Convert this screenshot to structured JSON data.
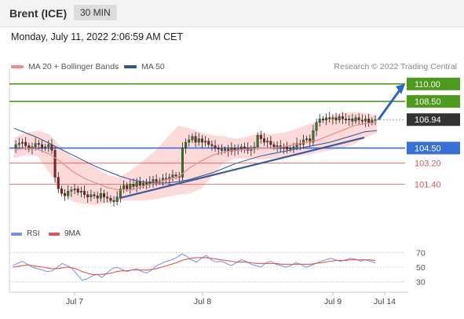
{
  "header": {
    "instrument": "Brent (ICE)",
    "interval": "30 MIN"
  },
  "datetime": "Monday, July 11, 2022 2:06:59 AM CET",
  "legend": {
    "ma20_label": "MA 20 + Bollinger Bands",
    "ma50_label": "MA 50",
    "credit": "Research © 2022 Trading Central"
  },
  "indicator_legend": {
    "rsi_label": "RSI",
    "ma9_label": "9MA"
  },
  "colors": {
    "ma20": "#ee8b8b",
    "ma50": "#33558e",
    "bollinger_fill": "#fbd4d4",
    "resistance": "#4d9a1c",
    "pivot": "#3a6fd6",
    "support": "#e05454",
    "current_price": "#333333",
    "candle_up": "#2f7d1f",
    "candle_down": "#8b1e1e",
    "trendline": "#3c5a9a",
    "rsi": "#7a8fe0",
    "ma9": "#e05454"
  },
  "chart_data": {
    "type": "candlestick",
    "title": "Brent (ICE)",
    "ylim": [
      99.0,
      111.0
    ],
    "x_labels": [
      "Jul 7",
      "Jul 8",
      "Jul 9",
      "Jul 14"
    ],
    "levels": [
      {
        "value": 110.0,
        "label": "110.00",
        "kind": "resistance"
      },
      {
        "value": 108.5,
        "label": "108.50",
        "kind": "resistance"
      },
      {
        "value": 106.94,
        "label": "106.94",
        "kind": "current"
      },
      {
        "value": 104.5,
        "label": "104.50",
        "kind": "pivot"
      },
      {
        "value": 103.2,
        "label": "103.20",
        "kind": "support"
      },
      {
        "value": 101.4,
        "label": "101.40",
        "kind": "support"
      }
    ],
    "price_path": [
      104.5,
      104.8,
      104.9,
      105.0,
      104.7,
      104.4,
      104.6,
      104.9,
      104.8,
      104.5,
      104.6,
      104.8,
      104.3,
      102.0,
      101.0,
      100.6,
      100.4,
      100.8,
      100.9,
      101.0,
      100.7,
      100.8,
      100.5,
      100.3,
      100.5,
      100.4,
      100.2,
      100.6,
      100.3,
      100.2,
      100.0,
      99.9,
      100.3,
      101.0,
      101.3,
      101.0,
      101.4,
      101.2,
      101.6,
      101.3,
      101.5,
      101.4,
      101.6,
      101.8,
      101.6,
      101.7,
      101.9,
      101.8,
      102.0,
      102.2,
      102.1,
      102.0,
      104.5,
      105.0,
      105.2,
      105.5,
      105.0,
      105.3,
      105.0,
      105.1,
      104.8,
      104.7,
      104.5,
      104.4,
      104.3,
      104.4,
      104.2,
      104.5,
      104.3,
      104.4,
      104.6,
      104.5,
      104.3,
      104.4,
      104.6,
      105.6,
      105.3,
      105.0,
      105.1,
      104.8,
      104.6,
      104.7,
      104.5,
      104.6,
      104.4,
      104.5,
      104.6,
      104.9,
      104.8,
      105.2,
      105.3,
      105.0,
      106.0,
      106.7,
      107.0,
      106.9,
      107.1,
      107.0,
      107.1,
      106.9,
      107.2,
      107.0,
      106.9,
      107.0,
      106.8,
      107.1,
      106.9,
      106.8,
      107.0,
      106.7,
      106.9,
      106.94
    ],
    "ma20": [
      104.3,
      104.5,
      104.4,
      104.0,
      103.3,
      102.5,
      101.9,
      101.5,
      101.1,
      100.9,
      100.9,
      101.2,
      101.5,
      101.8,
      102.0,
      102.8,
      103.4,
      103.9,
      104.2,
      104.3,
      104.4,
      104.5,
      104.5,
      104.6,
      104.8,
      105.0,
      105.2,
      105.6,
      106.0,
      106.4,
      106.6,
      106.7
    ],
    "ma50": [
      106.2,
      105.8,
      105.4,
      104.9,
      104.4,
      103.9,
      103.4,
      102.9,
      102.5,
      102.1,
      101.8,
      101.6,
      101.5,
      101.5,
      101.6,
      101.8,
      102.1,
      102.4,
      102.8,
      103.2,
      103.5,
      103.8,
      104.0,
      104.2,
      104.4,
      104.6,
      104.8,
      105.0,
      105.3,
      105.6,
      105.9,
      106.0
    ],
    "bollinger_upper": [
      105.4,
      105.8,
      106.0,
      105.7,
      104.6,
      103.7,
      103.4,
      102.8,
      102.2,
      102.0,
      102.6,
      103.4,
      104.2,
      105.3,
      106.4,
      106.2,
      105.8,
      105.6,
      105.5,
      105.3,
      105.5,
      105.8,
      105.7,
      105.8,
      106.1,
      106.5,
      106.8,
      107.2,
      107.5,
      107.6,
      107.5,
      107.3
    ],
    "bollinger_lower": [
      103.6,
      103.9,
      103.8,
      102.4,
      100.8,
      99.9,
      99.7,
      99.6,
      99.8,
      100.0,
      100.0,
      100.0,
      100.1,
      100.3,
      100.5,
      100.6,
      101.0,
      102.2,
      103.3,
      103.6,
      103.6,
      103.5,
      103.6,
      103.7,
      103.8,
      103.9,
      104.1,
      104.3,
      104.5,
      104.8,
      105.4,
      105.8
    ],
    "trendline": {
      "start": 100.2,
      "end": 105.4
    },
    "forecast_arrow": {
      "from": 106.94,
      "to": 110.0
    },
    "rsi": {
      "ylim": [
        20,
        80
      ],
      "ticks": [
        70,
        50,
        30
      ],
      "rsi_values": [
        52,
        55,
        58,
        54,
        50,
        48,
        46,
        44,
        45,
        50,
        55,
        52,
        48,
        40,
        32,
        34,
        38,
        40,
        36,
        42,
        48,
        50,
        47,
        44,
        46,
        48,
        44,
        42,
        46,
        52,
        55,
        58,
        60,
        63,
        68,
        65,
        60,
        57,
        62,
        66,
        60,
        57,
        58,
        55,
        52,
        56,
        60,
        58,
        54,
        52,
        50,
        56,
        58,
        54,
        52,
        50,
        52,
        56,
        54,
        50,
        52,
        55,
        58,
        60,
        62,
        60,
        58,
        60,
        62,
        61,
        58,
        60,
        58,
        56
      ],
      "ma9_values": [
        50,
        51,
        52,
        53,
        52,
        51,
        50,
        49,
        48,
        48,
        49,
        50,
        49,
        47,
        44,
        42,
        40,
        40,
        40,
        41,
        42,
        44,
        45,
        45,
        46,
        46,
        46,
        46,
        47,
        48,
        50,
        52,
        54,
        56,
        59,
        61,
        62,
        63,
        63,
        63,
        62,
        61,
        60,
        59,
        58,
        57,
        57,
        57,
        56,
        55,
        55,
        55,
        55,
        55,
        54,
        54,
        54,
        54,
        54,
        54,
        54,
        55,
        56,
        57,
        58,
        59,
        59,
        59,
        60,
        60,
        60,
        60,
        60,
        59
      ]
    }
  }
}
